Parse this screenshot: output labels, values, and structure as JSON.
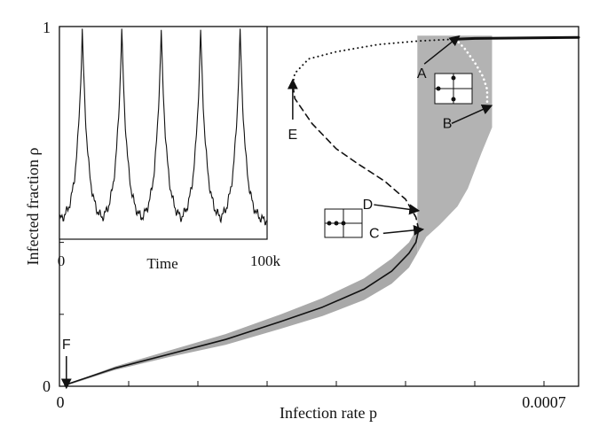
{
  "chart_data": {
    "type": "line",
    "xlabel": "Infection rate p",
    "ylabel": "Infected fraction ρ",
    "xlim": [
      0,
      0.00075
    ],
    "ylim": [
      0,
      1
    ],
    "x_tick_labels": [
      "0",
      "0.0007"
    ],
    "y_tick_labels": [
      "0",
      "1"
    ],
    "colors": {
      "line": "#111111",
      "band": "#a9a9a9",
      "region": "#b3b3b3",
      "upper_branch": "#111111"
    },
    "series": [
      {
        "style": "solid",
        "points": [
          [
            1e-05,
            0.005
          ],
          [
            8e-05,
            0.05
          ],
          [
            0.00016,
            0.09
          ],
          [
            0.00024,
            0.13
          ],
          [
            0.00032,
            0.18
          ],
          [
            0.00038,
            0.22
          ],
          [
            0.00044,
            0.27
          ],
          [
            0.00048,
            0.32
          ],
          [
            0.000505,
            0.37
          ],
          [
            0.000515,
            0.4
          ],
          [
            0.000519,
            0.435
          ]
        ]
      },
      {
        "style": "dashed",
        "points": [
          [
            0.000519,
            0.435
          ],
          [
            0.000515,
            0.47
          ],
          [
            0.0005,
            0.52
          ],
          [
            0.00047,
            0.57
          ],
          [
            0.00043,
            0.62
          ],
          [
            0.0004,
            0.66
          ],
          [
            0.000365,
            0.73
          ],
          [
            0.00034,
            0.8
          ],
          [
            0.000337,
            0.84
          ]
        ]
      },
      {
        "style": "dotted",
        "points": [
          [
            0.000337,
            0.84
          ],
          [
            0.00034,
            0.87
          ],
          [
            0.00036,
            0.91
          ],
          [
            0.0004,
            0.93
          ],
          [
            0.00046,
            0.95
          ],
          [
            0.00052,
            0.96
          ],
          [
            0.000572,
            0.965
          ]
        ]
      },
      {
        "style": "solid",
        "points": [
          [
            0.000572,
            0.965
          ],
          [
            0.0006,
            0.967
          ],
          [
            0.00065,
            0.968
          ],
          [
            0.00075,
            0.97
          ]
        ]
      },
      {
        "style": "dotted-white",
        "points": [
          [
            0.000572,
            0.965
          ],
          [
            0.000585,
            0.94
          ],
          [
            0.0006,
            0.9
          ],
          [
            0.000612,
            0.86
          ],
          [
            0.000618,
            0.825
          ],
          [
            0.000618,
            0.775
          ]
        ]
      }
    ],
    "bands": [
      {
        "upper": [
          [
            1e-05,
            0.005
          ],
          [
            8e-05,
            0.055
          ],
          [
            0.00016,
            0.1
          ],
          [
            0.00024,
            0.145
          ],
          [
            0.00032,
            0.2
          ],
          [
            0.00038,
            0.245
          ],
          [
            0.00044,
            0.3
          ],
          [
            0.00048,
            0.355
          ],
          [
            0.000505,
            0.4
          ],
          [
            0.000517,
            0.44
          ]
        ],
        "lower": [
          [
            1e-05,
            0.002
          ],
          [
            8e-05,
            0.045
          ],
          [
            0.00016,
            0.082
          ],
          [
            0.00024,
            0.115
          ],
          [
            0.00032,
            0.16
          ],
          [
            0.00038,
            0.195
          ],
          [
            0.00044,
            0.24
          ],
          [
            0.00048,
            0.285
          ],
          [
            0.000505,
            0.33
          ],
          [
            0.000517,
            0.37
          ]
        ]
      }
    ],
    "region": [
      [
        0.000517,
        0.37
      ],
      [
        0.000517,
        0.975
      ],
      [
        0.000625,
        0.975
      ],
      [
        0.000625,
        0.72
      ],
      [
        0.00061,
        0.65
      ],
      [
        0.0006,
        0.6
      ],
      [
        0.00059,
        0.55
      ],
      [
        0.000575,
        0.5
      ],
      [
        0.00055,
        0.45
      ],
      [
        0.00053,
        0.415
      ],
      [
        0.000517,
        0.37
      ]
    ],
    "annotations": [
      {
        "label": "A",
        "x": 0.000572,
        "y": 0.965
      },
      {
        "label": "B",
        "x": 0.000618,
        "y": 0.775
      },
      {
        "label": "C",
        "x": 0.000519,
        "y": 0.435
      },
      {
        "label": "D",
        "x": 0.000512,
        "y": 0.49
      },
      {
        "label": "E",
        "x": 0.000337,
        "y": 0.84
      },
      {
        "label": "F",
        "x": 1e-05,
        "y": 0.005
      }
    ],
    "inset": {
      "type": "line",
      "xlabel": "Time",
      "x_tick_labels": [
        "0",
        "100k"
      ],
      "xlim": [
        0,
        100000
      ],
      "ylim": [
        0,
        1
      ],
      "peak_times": [
        11000,
        30000,
        49000,
        68000,
        87000
      ],
      "peak_height": 0.98,
      "baseline": 0.08
    }
  }
}
